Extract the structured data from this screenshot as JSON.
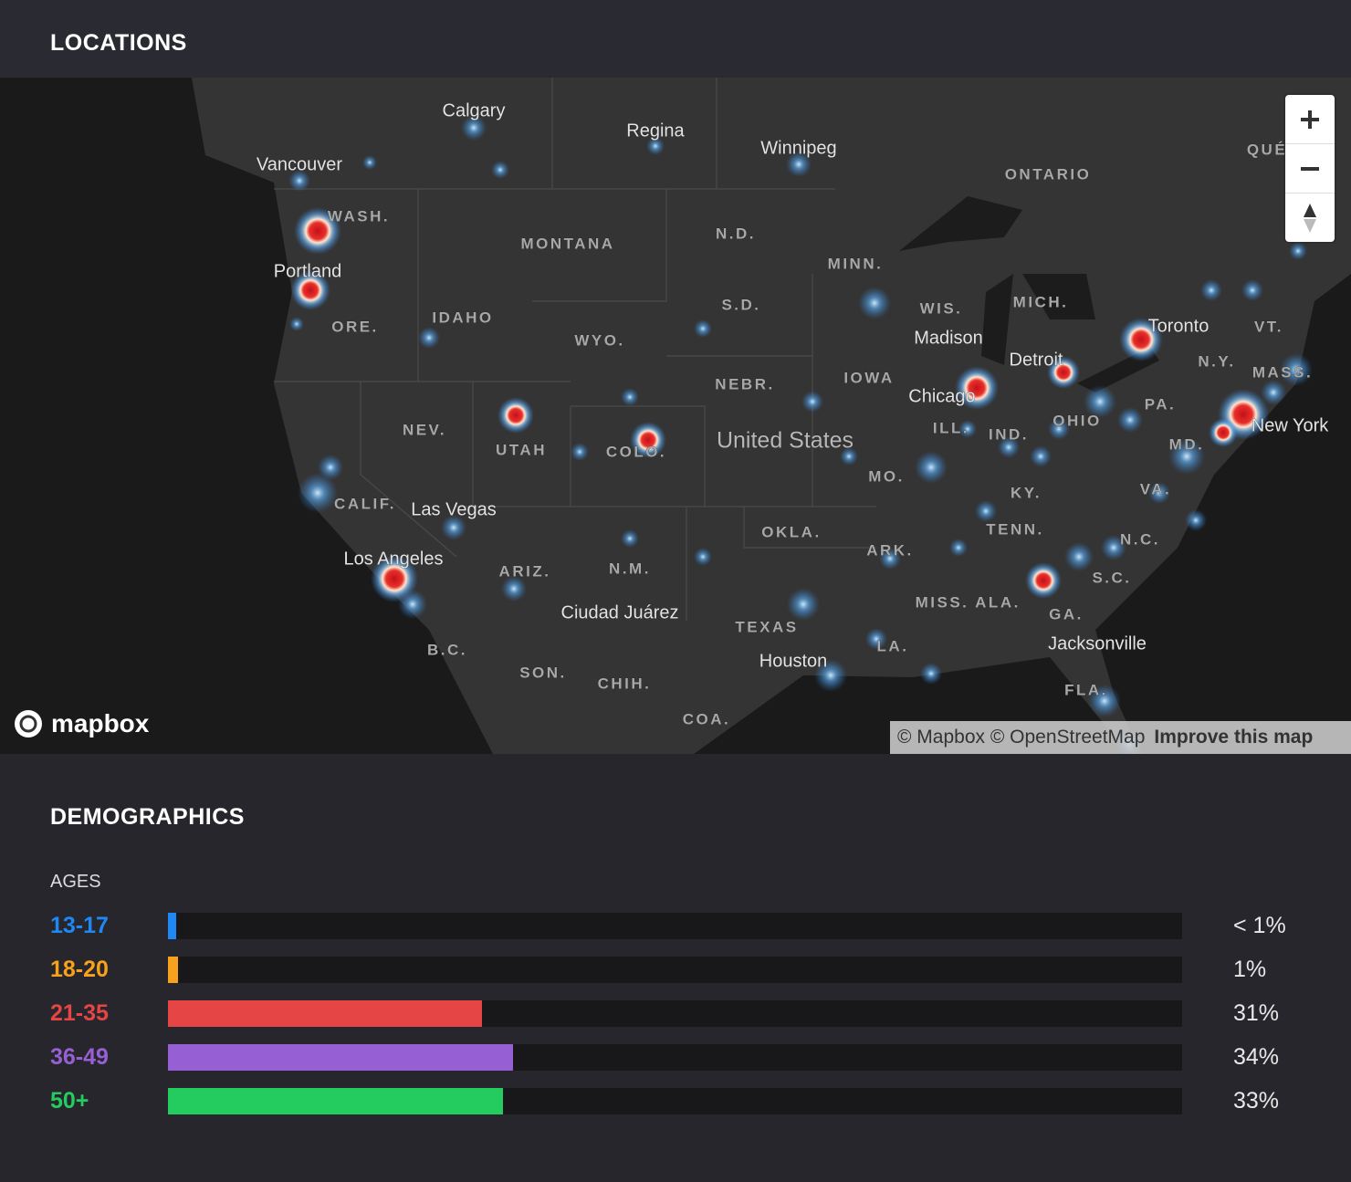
{
  "header": {
    "title": "LOCATIONS"
  },
  "map": {
    "labels": [
      "Calgary",
      "Regina",
      "Winnipeg",
      "Vancouver",
      "ONTARIO",
      "QUÉ",
      "WASH.",
      "MONTANA",
      "N.D.",
      "Portland",
      "MINN.",
      "S.D.",
      "MICH.",
      "WIS.",
      "Toronto",
      "VT.",
      "ORE.",
      "IDAHO",
      "WYO.",
      "Madison",
      "Detroit",
      "N.Y.",
      "MASS.",
      "NEBR.",
      "IOWA",
      "Chicago",
      "PA.",
      "ILL.",
      "IND.",
      "OHIO",
      "New York",
      "NEV.",
      "UTAH",
      "COLO.",
      "United States",
      "MD.",
      "MO.",
      "KY.",
      "VA.",
      "CALIF.",
      "Las Vegas",
      "OKLA.",
      "TENN.",
      "ARK.",
      "N.C.",
      "Los Angeles",
      "ARIZ.",
      "N.M.",
      "S.C.",
      "MISS.",
      "ALA.",
      "GA.",
      "Ciudad Juárez",
      "TEXAS",
      "LA.",
      "Jacksonville",
      "B.C.",
      "Houston",
      "SON.",
      "CHIH.",
      "FLA.",
      "COA."
    ],
    "logo": "mapbox",
    "attribution": "© Mapbox © OpenStreetMap",
    "improve_link": "Improve this map"
  },
  "demographics": {
    "title": "DEMOGRAPHICS",
    "ages": {
      "title": "AGES",
      "categories": [
        "13-17",
        "18-20",
        "21-35",
        "36-49",
        "50+"
      ],
      "values": [
        0.5,
        1,
        31,
        34,
        33
      ],
      "value_labels": [
        "< 1%",
        "1%",
        "31%",
        "34%",
        "33%"
      ],
      "colors": [
        "#1e88f5",
        "#f7a11c",
        "#e64545",
        "#9660d4",
        "#24cc5f"
      ],
      "xlim": [
        0,
        100
      ]
    }
  }
}
